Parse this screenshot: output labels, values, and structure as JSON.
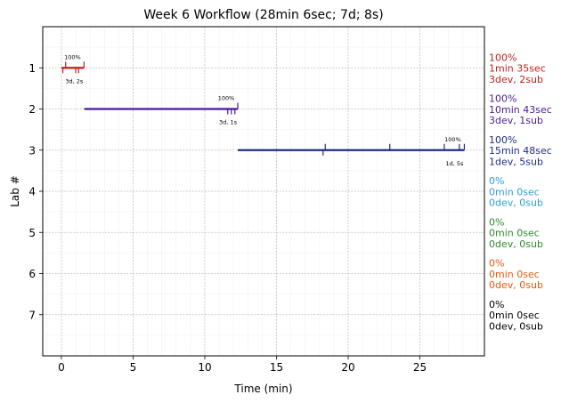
{
  "chart_data": {
    "type": "timeline",
    "title": "Week 6 Workflow (28min 6sec; 7d; 8s)",
    "xlabel": "Time (min)",
    "ylabel": "Lab #",
    "xlim": [
      -1.3,
      29.5
    ],
    "ylim": [
      8.0,
      0.0
    ],
    "xticks": [
      0,
      5,
      10,
      15,
      20,
      25
    ],
    "yticks": [
      1,
      2,
      3,
      4,
      5,
      6,
      7
    ],
    "grid": true,
    "labs": [
      {
        "lab": 1,
        "color": "#c0201e",
        "start": 0.0,
        "end": 1.58,
        "percent_label": "100%",
        "counts_label": "3d, 2s",
        "dev_ticks": [
          0.1,
          1.0,
          1.2
        ],
        "sub_ticks": [
          0.3,
          1.58
        ],
        "summary": [
          "100%",
          "1min 35sec",
          "3dev, 2sub"
        ]
      },
      {
        "lab": 2,
        "color": "#4b1a96",
        "start": 1.6,
        "end": 12.3,
        "percent_label": "100%",
        "counts_label": "3d, 1s",
        "dev_ticks": [
          11.6,
          11.85,
          12.1
        ],
        "sub_ticks": [
          12.3
        ],
        "summary": [
          "100%",
          "10min 43sec",
          "3dev, 1sub"
        ]
      },
      {
        "lab": 3,
        "color": "#1f2d7e",
        "start": 12.3,
        "end": 28.1,
        "percent_label": "100%",
        "counts_label": "1d, 5s",
        "dev_ticks": [
          18.25
        ],
        "sub_ticks": [
          18.4,
          22.9,
          26.7,
          27.75,
          28.1
        ],
        "summary": [
          "100%",
          "15min 48sec",
          "1dev, 5sub"
        ]
      },
      {
        "lab": 4,
        "color": "#2a9fd6",
        "summary": [
          "0%",
          "0min 0sec",
          "0dev, 0sub"
        ]
      },
      {
        "lab": 5,
        "color": "#2e8b2e",
        "summary": [
          "0%",
          "0min 0sec",
          "0dev, 0sub"
        ]
      },
      {
        "lab": 6,
        "color": "#e05a0c",
        "summary": [
          "0%",
          "0min 0sec",
          "0dev, 0sub"
        ]
      },
      {
        "lab": 7,
        "color": "#000000",
        "summary": [
          "0%",
          "0min 0sec",
          "0dev, 0sub"
        ]
      }
    ]
  }
}
